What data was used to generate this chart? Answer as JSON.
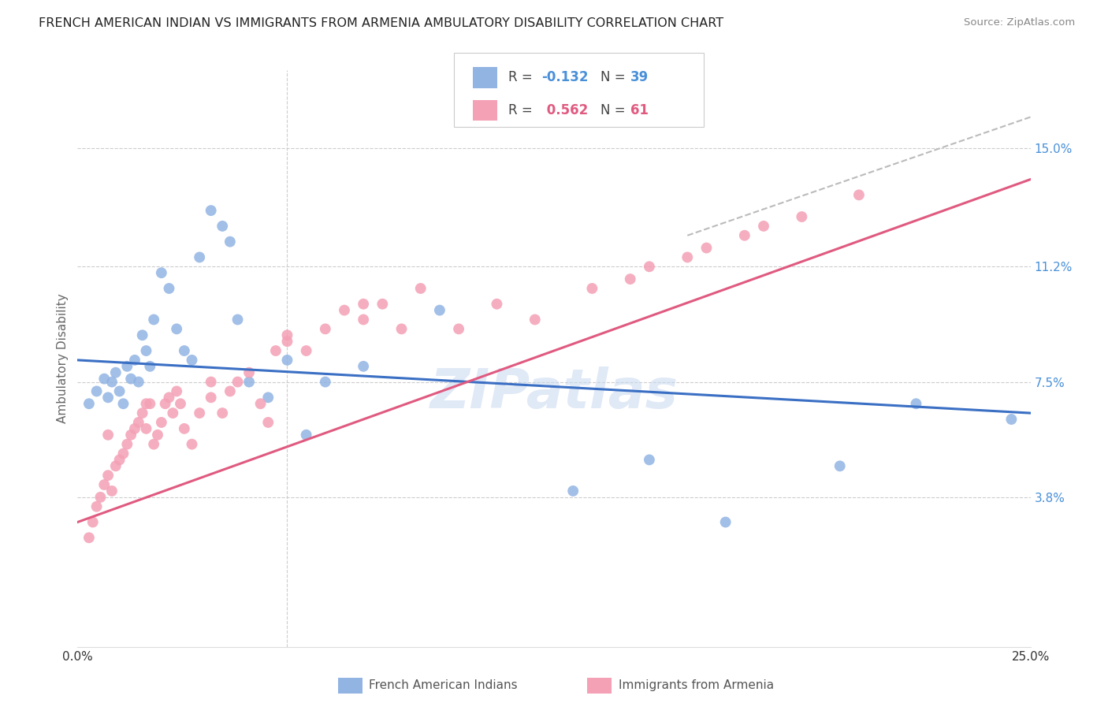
{
  "title": "FRENCH AMERICAN INDIAN VS IMMIGRANTS FROM ARMENIA AMBULATORY DISABILITY CORRELATION CHART",
  "source": "Source: ZipAtlas.com",
  "ylabel": "Ambulatory Disability",
  "ytick_labels": [
    "15.0%",
    "11.2%",
    "7.5%",
    "3.8%"
  ],
  "ytick_values": [
    0.15,
    0.112,
    0.075,
    0.038
  ],
  "xlim": [
    0.0,
    0.25
  ],
  "ylim": [
    -0.01,
    0.175
  ],
  "blue_color": "#92b4e3",
  "pink_color": "#f4a0b5",
  "line_blue_color": "#3a6fc4",
  "line_pink_color": "#e05a80",
  "line_dashed_color": "#bbbbbb",
  "watermark": "ZIPatlas",
  "blue_scatter_x": [
    0.003,
    0.005,
    0.007,
    0.008,
    0.009,
    0.01,
    0.011,
    0.012,
    0.013,
    0.014,
    0.015,
    0.016,
    0.017,
    0.018,
    0.019,
    0.02,
    0.022,
    0.024,
    0.026,
    0.028,
    0.03,
    0.032,
    0.035,
    0.038,
    0.04,
    0.042,
    0.045,
    0.05,
    0.055,
    0.06,
    0.065,
    0.075,
    0.095,
    0.13,
    0.15,
    0.17,
    0.2,
    0.22,
    0.245
  ],
  "blue_scatter_y": [
    0.068,
    0.072,
    0.076,
    0.07,
    0.075,
    0.078,
    0.072,
    0.068,
    0.08,
    0.076,
    0.082,
    0.075,
    0.09,
    0.085,
    0.08,
    0.095,
    0.11,
    0.105,
    0.092,
    0.085,
    0.082,
    0.115,
    0.13,
    0.125,
    0.12,
    0.095,
    0.075,
    0.07,
    0.082,
    0.058,
    0.075,
    0.08,
    0.098,
    0.04,
    0.05,
    0.03,
    0.048,
    0.068,
    0.063
  ],
  "pink_scatter_x": [
    0.003,
    0.004,
    0.005,
    0.006,
    0.007,
    0.008,
    0.009,
    0.01,
    0.011,
    0.012,
    0.013,
    0.014,
    0.015,
    0.016,
    0.017,
    0.018,
    0.019,
    0.02,
    0.021,
    0.022,
    0.023,
    0.024,
    0.025,
    0.026,
    0.027,
    0.028,
    0.03,
    0.032,
    0.035,
    0.038,
    0.04,
    0.042,
    0.045,
    0.048,
    0.05,
    0.052,
    0.055,
    0.06,
    0.065,
    0.07,
    0.075,
    0.08,
    0.085,
    0.09,
    0.1,
    0.11,
    0.12,
    0.135,
    0.15,
    0.165,
    0.175,
    0.19,
    0.205,
    0.145,
    0.16,
    0.18,
    0.075,
    0.055,
    0.035,
    0.018,
    0.008
  ],
  "pink_scatter_y": [
    0.025,
    0.03,
    0.035,
    0.038,
    0.042,
    0.045,
    0.04,
    0.048,
    0.05,
    0.052,
    0.055,
    0.058,
    0.06,
    0.062,
    0.065,
    0.06,
    0.068,
    0.055,
    0.058,
    0.062,
    0.068,
    0.07,
    0.065,
    0.072,
    0.068,
    0.06,
    0.055,
    0.065,
    0.07,
    0.065,
    0.072,
    0.075,
    0.078,
    0.068,
    0.062,
    0.085,
    0.09,
    0.085,
    0.092,
    0.098,
    0.095,
    0.1,
    0.092,
    0.105,
    0.092,
    0.1,
    0.095,
    0.105,
    0.112,
    0.118,
    0.122,
    0.128,
    0.135,
    0.108,
    0.115,
    0.125,
    0.1,
    0.088,
    0.075,
    0.068,
    0.058
  ],
  "blue_line_x0": 0.0,
  "blue_line_y0": 0.082,
  "blue_line_x1": 0.25,
  "blue_line_y1": 0.065,
  "pink_line_x0": 0.0,
  "pink_line_y0": 0.03,
  "pink_line_x1": 0.25,
  "pink_line_y1": 0.14,
  "dashed_line_x0": 0.16,
  "dashed_line_y0": 0.122,
  "dashed_line_x1": 0.25,
  "dashed_line_y1": 0.16
}
